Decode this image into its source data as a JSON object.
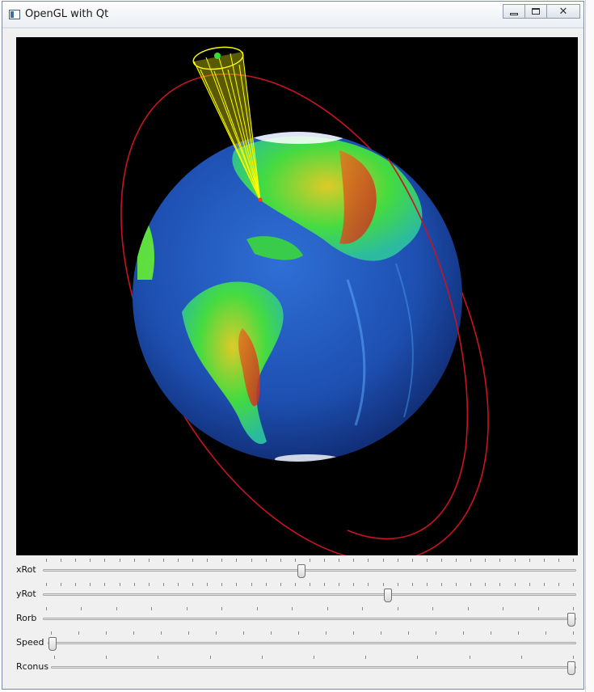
{
  "window": {
    "title": "OpenGL with Qt",
    "icon": "window-app-icon",
    "controls": [
      "minimize-icon",
      "maximize-icon",
      "close-icon"
    ]
  },
  "scene": {
    "background": "#000000",
    "orbit_color": "#c8141e",
    "cone_color": "#ffff00",
    "satellite_color": "#33dd33",
    "ocean_color": "#1a4fb8",
    "land_green": "#33e033",
    "land_red": "#d83a1e"
  },
  "sliders": [
    {
      "label": "xRot",
      "value": 0.485,
      "ticks": 37
    },
    {
      "label": "yRot",
      "value": 0.65,
      "ticks": 37
    },
    {
      "label": "Rorb",
      "value": 1.0,
      "ticks": 16
    },
    {
      "label": "Speed",
      "value": 0.0,
      "ticks": 20
    },
    {
      "label": "Rconus",
      "value": 1.0,
      "ticks": 11
    }
  ]
}
